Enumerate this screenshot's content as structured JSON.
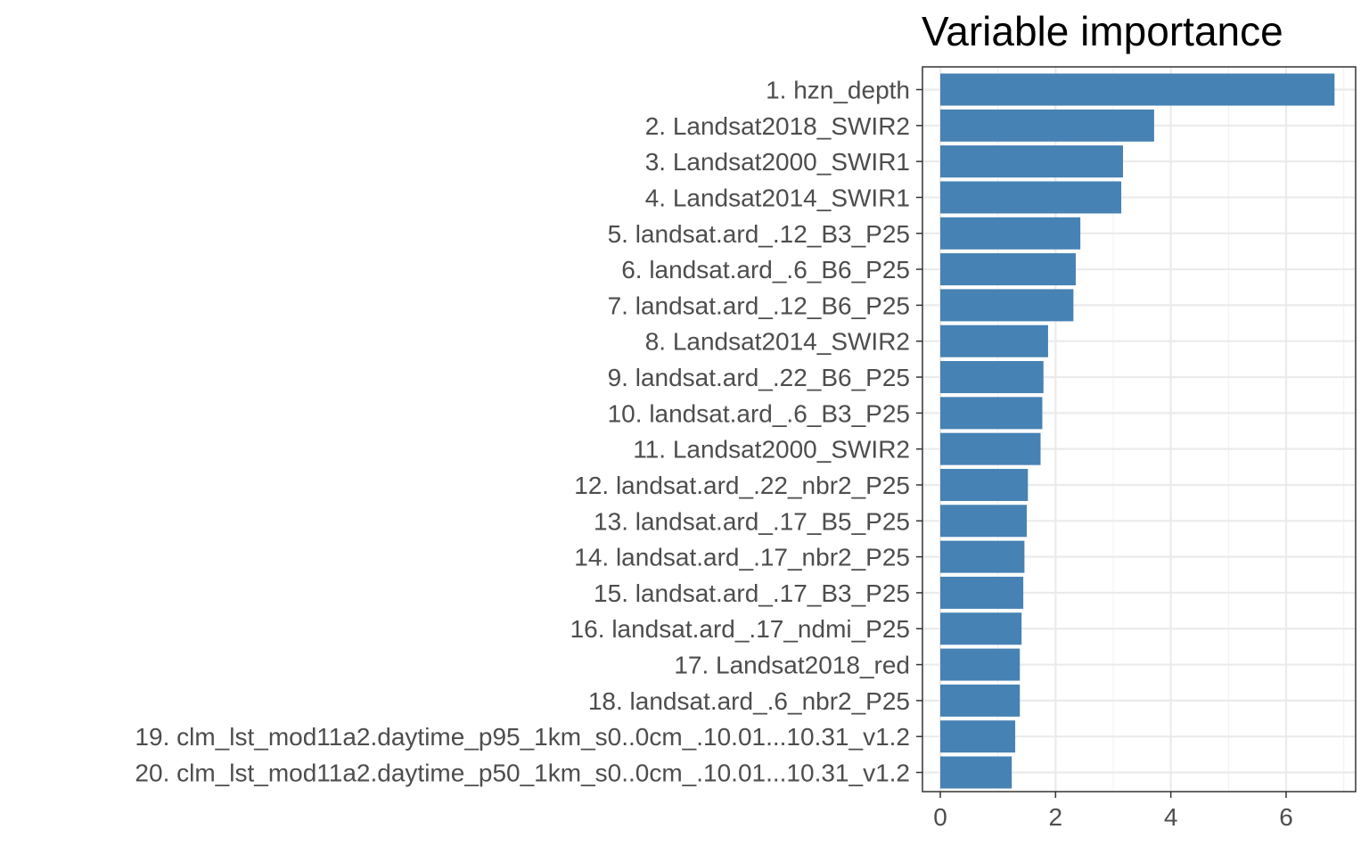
{
  "chart_data": {
    "type": "bar",
    "orientation": "horizontal",
    "title": "Variable importance",
    "xlabel": "",
    "ylabel": "",
    "xlim": [
      0,
      7
    ],
    "xticks": [
      0,
      2,
      4,
      6
    ],
    "xtick_labels": [
      "0",
      "2",
      "4",
      "6"
    ],
    "grid": true,
    "bar_color": "#4682b4",
    "categories": [
      "1. hzn_depth",
      "2. Landsat2018_SWIR2",
      "3. Landsat2000_SWIR1",
      "4. Landsat2014_SWIR1",
      "5. landsat.ard_.12_B3_P25",
      "6. landsat.ard_.6_B6_P25",
      "7. landsat.ard_.12_B6_P25",
      "8. Landsat2014_SWIR2",
      "9. landsat.ard_.22_B6_P25",
      "10. landsat.ard_.6_B3_P25",
      "11. Landsat2000_SWIR2",
      "12. landsat.ard_.22_nbr2_P25",
      "13. landsat.ard_.17_B5_P25",
      "14. landsat.ard_.17_nbr2_P25",
      "15. landsat.ard_.17_B3_P25",
      "16. landsat.ard_.17_ndmi_P25",
      "17. Landsat2018_red",
      "18. landsat.ard_.6_nbr2_P25",
      "19. clm_lst_mod11a2.daytime_p95_1km_s0..0cm_.10.01...10.31_v1.2",
      "20. clm_lst_mod11a2.daytime_p50_1km_s0..0cm_.10.01...10.31_v1.2"
    ],
    "values": [
      6.84,
      3.71,
      3.17,
      3.14,
      2.43,
      2.35,
      2.31,
      1.87,
      1.79,
      1.77,
      1.74,
      1.52,
      1.5,
      1.46,
      1.44,
      1.41,
      1.38,
      1.38,
      1.3,
      1.24
    ]
  }
}
